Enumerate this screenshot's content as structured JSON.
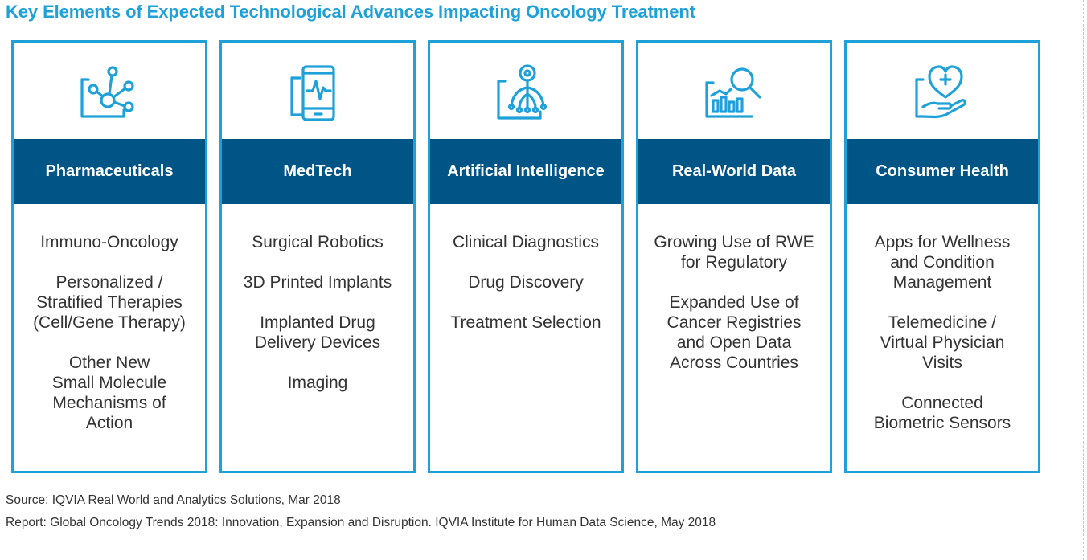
{
  "title": "Key Elements of Expected Technological Advances Impacting Oncology Treatment",
  "colors": {
    "accent": "#1ea1d8",
    "header_bg": "#005587",
    "text": "#333333"
  },
  "columns": [
    {
      "icon": "molecule-icon",
      "header": "Pharmaceuticals",
      "items": [
        "Immuno-Oncology",
        "Personalized /\nStratified Therapies\n(Cell/Gene Therapy)",
        "Other New\nSmall Molecule\nMechanisms of\nAction"
      ]
    },
    {
      "icon": "tablet-pulse-icon",
      "header": "MedTech",
      "items": [
        "Surgical Robotics",
        "3D Printed Implants",
        "Implanted Drug\nDelivery Devices",
        "Imaging"
      ]
    },
    {
      "icon": "ai-person-icon",
      "header": "Artificial Intelligence",
      "items": [
        "Clinical Diagnostics",
        "Drug Discovery",
        "Treatment Selection"
      ]
    },
    {
      "icon": "data-search-icon",
      "header": "Real-World Data",
      "items": [
        "Growing Use of RWE\nfor Regulatory",
        "Expanded Use of\nCancer Registries\nand Open Data\nAcross Countries"
      ]
    },
    {
      "icon": "heart-hand-icon",
      "header": "Consumer Health",
      "items": [
        "Apps for Wellness\nand Condition\nManagement",
        "Telemedicine /\nVirtual Physician\nVisits",
        "Connected\nBiometric Sensors"
      ]
    }
  ],
  "footer": {
    "source": "Source: IQVIA Real World and Analytics Solutions, Mar 2018",
    "report": "Report: Global Oncology Trends 2018: Innovation, Expansion and Disruption. IQVIA Institute for Human Data Science, May 2018"
  }
}
